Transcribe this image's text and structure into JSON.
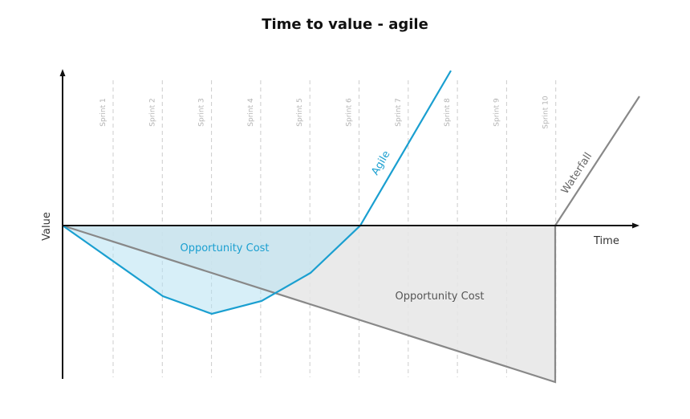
{
  "title": "Time to value - agile",
  "axes": {
    "x_label": "Time",
    "y_label": "Value"
  },
  "sprints": [
    "Sprint 1",
    "Sprint 2",
    "Sprint 3",
    "Sprint 4",
    "Sprint 5",
    "Sprint 6",
    "Sprint 7",
    "Sprint 8",
    "Sprint 9",
    "Sprint 10"
  ],
  "regions": {
    "agile_cost_label": "Opportunity Cost",
    "waterfall_cost_label": "Opportunity Cost"
  },
  "lines": {
    "agile_label": "Agile",
    "waterfall_label": "Waterfall"
  },
  "colors": {
    "agile": "#1a9fd0",
    "agile_fill": "#b7e1f3",
    "waterfall": "#888888",
    "waterfall_fill": "#e6e6e6",
    "axis": "#111111",
    "gridline": "#cccccc",
    "agile_label": "#1a9fd0",
    "waterfall_label": "#666666"
  }
}
